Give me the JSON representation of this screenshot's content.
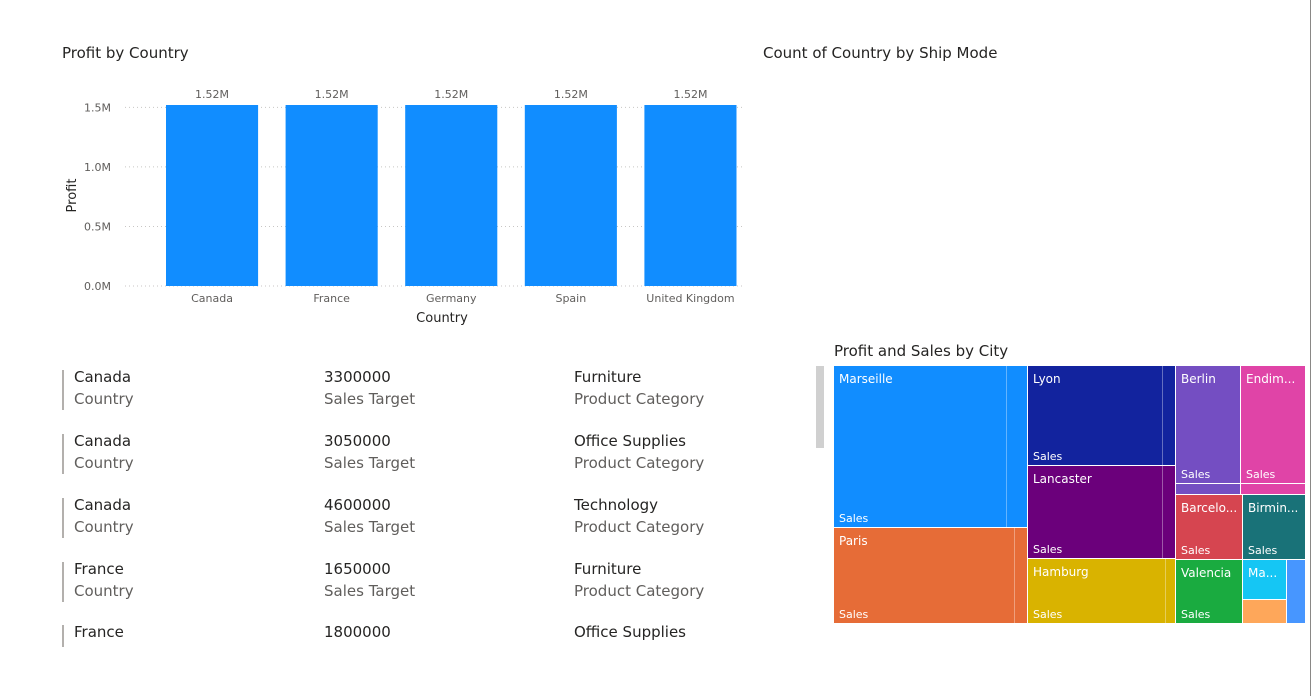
{
  "visuals": {
    "bar_title": "Profit by Country",
    "count_title": "Count of Country by Ship Mode",
    "treemap_title": "Profit and Sales by City"
  },
  "chart_data": {
    "type": "bar",
    "title": "Profit by Country",
    "xlabel": "Country",
    "ylabel": "Profit",
    "categories": [
      "Canada",
      "France",
      "Germany",
      "Spain",
      "United Kingdom"
    ],
    "values": [
      1520000,
      1520000,
      1520000,
      1520000,
      1520000
    ],
    "data_labels": [
      "1.52M",
      "1.52M",
      "1.52M",
      "1.52M",
      "1.52M"
    ],
    "yticks": [
      0,
      500000,
      1000000,
      1500000
    ],
    "ytick_labels": [
      "0.0M",
      "0.5M",
      "1.0M",
      "1.5M"
    ],
    "ylim": [
      0,
      1520000
    ],
    "grid": true,
    "bar_color": "#118dff"
  },
  "cards": {
    "rows": [
      {
        "country": "Canada",
        "country_label": "Country",
        "target": "3300000",
        "target_label": "Sales Target",
        "category": "Furniture",
        "category_label": "Product Category"
      },
      {
        "country": "Canada",
        "country_label": "Country",
        "target": "3050000",
        "target_label": "Sales Target",
        "category": "Office Supplies",
        "category_label": "Product Category"
      },
      {
        "country": "Canada",
        "country_label": "Country",
        "target": "4600000",
        "target_label": "Sales Target",
        "category": "Technology",
        "category_label": "Product Category"
      },
      {
        "country": "France",
        "country_label": "Country",
        "target": "1650000",
        "target_label": "Sales Target",
        "category": "Furniture",
        "category_label": "Product Category"
      },
      {
        "country": "France",
        "target": "1800000",
        "category": "Office Supplies"
      }
    ]
  },
  "treemap": {
    "sales_label": "Sales",
    "tiles": [
      {
        "name": "Marseille",
        "color": "#118dff"
      },
      {
        "name": "Paris",
        "color": "#e66c37"
      },
      {
        "name": "Lyon",
        "color": "#12239e"
      },
      {
        "name": "Lancaster",
        "color": "#6b007b"
      },
      {
        "name": "Hamburg",
        "color": "#d9b300"
      },
      {
        "name": "Berlin",
        "color": "#744ec2"
      },
      {
        "name": "Endim...",
        "color": "#e044a7"
      },
      {
        "name": "Barcelo...",
        "color": "#d64550"
      },
      {
        "name": "Birmin...",
        "color": "#197278"
      },
      {
        "name": "Valencia",
        "color": "#1aab40"
      },
      {
        "name": "Ma...",
        "color": "#15c6f4"
      }
    ]
  }
}
